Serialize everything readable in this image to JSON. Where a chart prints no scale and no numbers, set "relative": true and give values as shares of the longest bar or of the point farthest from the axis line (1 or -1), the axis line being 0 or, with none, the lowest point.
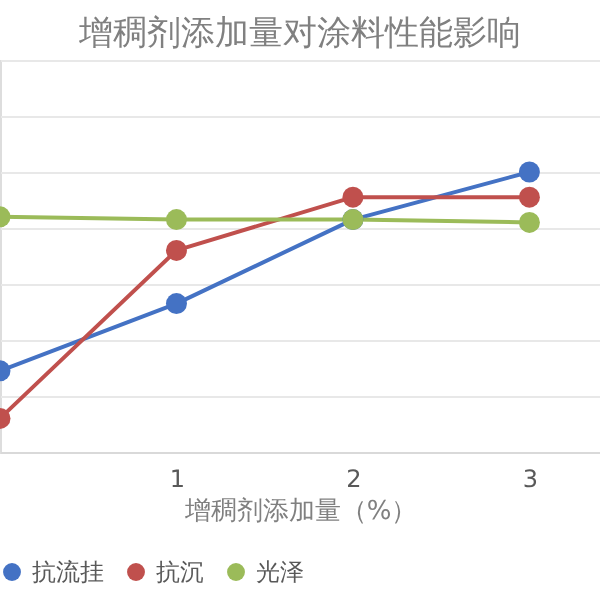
{
  "chart_data": {
    "type": "line",
    "title": "增稠剂添加量对涂料性能影响",
    "xlabel": "增稠剂添加量（%）",
    "x": [
      0,
      1,
      2,
      3
    ],
    "xlim": [
      0,
      3.4
    ],
    "xticks": [
      1,
      2,
      3
    ],
    "relative": true,
    "series": [
      {
        "name": "抗流挂",
        "color": "#4472c4",
        "values": [
          0.29,
          0.53,
          0.83,
          1
        ]
      },
      {
        "name": "抗沉",
        "color": "#c0504d",
        "values": [
          0.12,
          0.72,
          0.91,
          0.91
        ]
      },
      {
        "name": "光泽",
        "color": "#9bbb59",
        "values": [
          0.84,
          0.83,
          0.83,
          0.82
        ]
      }
    ],
    "grid": "y",
    "legend": "bottom",
    "marker": "circle",
    "line_style": "solid",
    "tick_labels": "x"
  }
}
